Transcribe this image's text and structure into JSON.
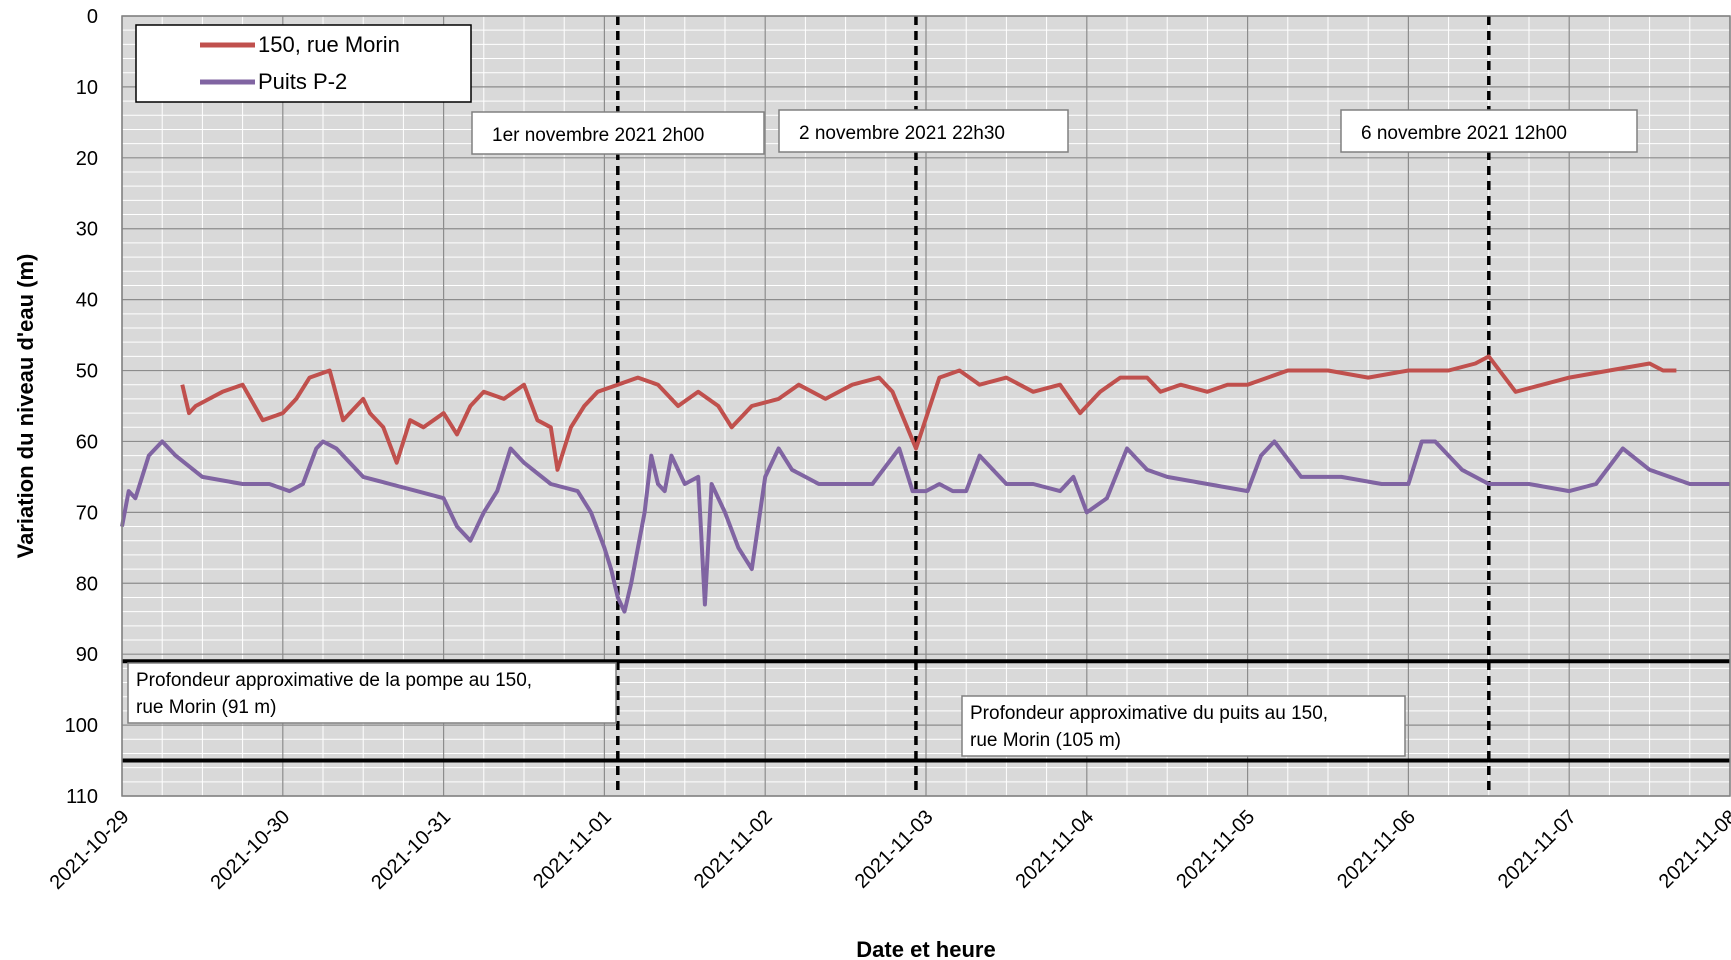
{
  "chart_data": {
    "type": "line",
    "title": "",
    "xlabel": "Date et heure",
    "ylabel": "Variation du niveau d'eau (m)",
    "y_inverted": true,
    "ylim": [
      0,
      110
    ],
    "y_ticks": [
      0,
      10,
      20,
      30,
      40,
      50,
      60,
      70,
      80,
      90,
      100,
      110
    ],
    "x_ticks": [
      "2021-10-29",
      "2021-10-30",
      "2021-10-31",
      "2021-11-01",
      "2021-11-02",
      "2021-11-03",
      "2021-11-04",
      "2021-11-05",
      "2021-11-06",
      "2021-11-07",
      "2021-11-08"
    ],
    "xlim": [
      "2021-10-29",
      "2021-11-08"
    ],
    "grid": true,
    "legend_position": "top-left",
    "series": [
      {
        "name": "150, rue Morin",
        "color": "#c0504d",
        "x": [
          "2021-10-29 09:00",
          "2021-10-29 10:00",
          "2021-10-29 11:00",
          "2021-10-29 13:00",
          "2021-10-29 15:00",
          "2021-10-29 18:00",
          "2021-10-29 21:00",
          "2021-10-30 00:00",
          "2021-10-30 02:00",
          "2021-10-30 04:00",
          "2021-10-30 07:00",
          "2021-10-30 09:00",
          "2021-10-30 12:00",
          "2021-10-30 13:00",
          "2021-10-30 15:00",
          "2021-10-30 17:00",
          "2021-10-30 19:00",
          "2021-10-30 21:00",
          "2021-10-31 00:00",
          "2021-10-31 02:00",
          "2021-10-31 04:00",
          "2021-10-31 06:00",
          "2021-10-31 09:00",
          "2021-10-31 12:00",
          "2021-10-31 14:00",
          "2021-10-31 16:00",
          "2021-10-31 17:00",
          "2021-10-31 19:00",
          "2021-10-31 21:00",
          "2021-10-31 23:00",
          "2021-11-01 02:00",
          "2021-11-01 05:00",
          "2021-11-01 08:00",
          "2021-11-01 11:00",
          "2021-11-01 14:00",
          "2021-11-01 17:00",
          "2021-11-01 19:00",
          "2021-11-01 22:00",
          "2021-11-02 02:00",
          "2021-11-02 05:00",
          "2021-11-02 09:00",
          "2021-11-02 13:00",
          "2021-11-02 17:00",
          "2021-11-02 19:00",
          "2021-11-02 22:30",
          "2021-11-03 02:00",
          "2021-11-03 05:00",
          "2021-11-03 08:00",
          "2021-11-03 12:00",
          "2021-11-03 16:00",
          "2021-11-03 20:00",
          "2021-11-03 23:00",
          "2021-11-04 02:00",
          "2021-11-04 05:00",
          "2021-11-04 09:00",
          "2021-11-04 11:00",
          "2021-11-04 14:00",
          "2021-11-04 18:00",
          "2021-11-04 21:00",
          "2021-11-05 00:00",
          "2021-11-05 06:00",
          "2021-11-05 12:00",
          "2021-11-05 18:00",
          "2021-11-06 00:00",
          "2021-11-06 06:00",
          "2021-11-06 10:00",
          "2021-11-06 12:00",
          "2021-11-06 16:00",
          "2021-11-06 20:00",
          "2021-11-07 00:00",
          "2021-11-07 06:00",
          "2021-11-07 12:00",
          "2021-11-07 14:00",
          "2021-11-07 16:00"
        ],
        "y": [
          52,
          56,
          55,
          54,
          53,
          52,
          57,
          56,
          54,
          51,
          50,
          57,
          54,
          56,
          58,
          63,
          57,
          58,
          56,
          59,
          55,
          53,
          54,
          52,
          57,
          58,
          64,
          58,
          55,
          53,
          52,
          51,
          52,
          55,
          53,
          55,
          58,
          55,
          54,
          52,
          54,
          52,
          51,
          53,
          61,
          51,
          50,
          52,
          51,
          53,
          52,
          56,
          53,
          51,
          51,
          53,
          52,
          53,
          52,
          52,
          50,
          50,
          51,
          50,
          50,
          49,
          48,
          53,
          52,
          51,
          50,
          49,
          50,
          50
        ]
      },
      {
        "name": "Puits P-2",
        "color": "#8064a2",
        "x": [
          "2021-10-29 00:00",
          "2021-10-29 01:00",
          "2021-10-29 02:00",
          "2021-10-29 04:00",
          "2021-10-29 06:00",
          "2021-10-29 08:00",
          "2021-10-29 12:00",
          "2021-10-29 18:00",
          "2021-10-29 22:00",
          "2021-10-30 01:00",
          "2021-10-30 03:00",
          "2021-10-30 05:00",
          "2021-10-30 06:00",
          "2021-10-30 08:00",
          "2021-10-30 12:00",
          "2021-10-30 16:00",
          "2021-10-30 20:00",
          "2021-10-31 00:00",
          "2021-10-31 02:00",
          "2021-10-31 04:00",
          "2021-10-31 06:00",
          "2021-10-31 08:00",
          "2021-10-31 10:00",
          "2021-10-31 12:00",
          "2021-10-31 16:00",
          "2021-10-31 20:00",
          "2021-10-31 22:00",
          "2021-11-01 00:00",
          "2021-11-01 01:00",
          "2021-11-01 02:00",
          "2021-11-01 03:00",
          "2021-11-01 04:00",
          "2021-11-01 06:00",
          "2021-11-01 07:00",
          "2021-11-01 08:00",
          "2021-11-01 09:00",
          "2021-11-01 10:00",
          "2021-11-01 12:00",
          "2021-11-01 14:00",
          "2021-11-01 15:00",
          "2021-11-01 16:00",
          "2021-11-01 18:00",
          "2021-11-01 20:00",
          "2021-11-01 22:00",
          "2021-11-02 00:00",
          "2021-11-02 02:00",
          "2021-11-02 04:00",
          "2021-11-02 06:00",
          "2021-11-02 08:00",
          "2021-11-02 12:00",
          "2021-11-02 16:00",
          "2021-11-02 20:00",
          "2021-11-02 22:00",
          "2021-11-03 00:00",
          "2021-11-03 02:00",
          "2021-11-03 04:00",
          "2021-11-03 06:00",
          "2021-11-03 08:00",
          "2021-11-03 12:00",
          "2021-11-03 16:00",
          "2021-11-03 20:00",
          "2021-11-03 22:00",
          "2021-11-04 00:00",
          "2021-11-04 03:00",
          "2021-11-04 06:00",
          "2021-11-04 09:00",
          "2021-11-04 12:00",
          "2021-11-04 18:00",
          "2021-11-05 00:00",
          "2021-11-05 02:00",
          "2021-11-05 04:00",
          "2021-11-05 08:00",
          "2021-11-05 14:00",
          "2021-11-05 20:00",
          "2021-11-06 00:00",
          "2021-11-06 02:00",
          "2021-11-06 04:00",
          "2021-11-06 08:00",
          "2021-11-06 12:00",
          "2021-11-06 18:00",
          "2021-11-07 00:00",
          "2021-11-07 04:00",
          "2021-11-07 08:00",
          "2021-11-07 12:00",
          "2021-11-07 18:00",
          "2021-11-08 00:00"
        ],
        "y": [
          72,
          67,
          68,
          62,
          60,
          62,
          65,
          66,
          66,
          67,
          66,
          61,
          60,
          61,
          65,
          66,
          67,
          68,
          72,
          74,
          70,
          67,
          61,
          63,
          66,
          67,
          70,
          75,
          78,
          82,
          84,
          80,
          70,
          62,
          66,
          67,
          62,
          66,
          65,
          83,
          66,
          70,
          75,
          78,
          65,
          61,
          64,
          65,
          66,
          66,
          66,
          61,
          67,
          67,
          66,
          67,
          67,
          62,
          66,
          66,
          67,
          65,
          70,
          68,
          61,
          64,
          65,
          66,
          67,
          62,
          60,
          65,
          65,
          66,
          66,
          60,
          60,
          64,
          66,
          66,
          67,
          66,
          61,
          64,
          66,
          66
        ]
      }
    ],
    "reference_lines": {
      "vertical": [
        {
          "x": "2021-11-01 02:00",
          "label": "1er novembre 2021 2h00"
        },
        {
          "x": "2021-11-02 22:30",
          "label": "2 novembre 2021 22h30"
        },
        {
          "x": "2021-11-06 12:00",
          "label": "6 novembre 2021 12h00"
        }
      ],
      "horizontal": [
        {
          "y": 91,
          "label": [
            "Profondeur approximative de la pompe au 150,",
            "rue Morin (91 m)"
          ]
        },
        {
          "y": 105,
          "label": [
            "Profondeur approximative du puits au 150,",
            "rue Morin (105 m)"
          ]
        }
      ]
    }
  }
}
